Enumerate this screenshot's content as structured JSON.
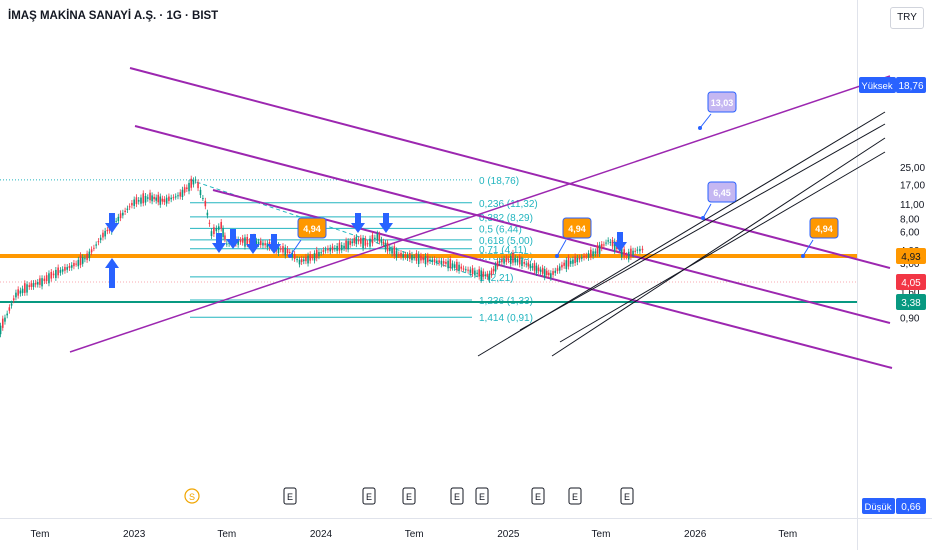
{
  "header": {
    "title": "İMAŞ MAKİNA SANAYİ A.Ş. · 1G · BIST",
    "currency": "TRY"
  },
  "colors": {
    "up": "#089981",
    "down": "#f23645",
    "fib": "#22b5bf",
    "channel": "#9c27b0",
    "support": "#ff9800",
    "green_line": "#089981",
    "arrow": "#2962ff",
    "callout_orange": "#ff9800",
    "callout_lilac": "#c5b7f2",
    "high_badge": "#2962ff"
  },
  "chart_data": {
    "type": "line",
    "description_of_series": "daily close (candlestick) approximated",
    "y_scale": "log",
    "y_ticks": [
      "25,00",
      "17,00",
      "11,00",
      "8,00",
      "6,00",
      "4,00",
      "3,00",
      "2,20",
      "1,60",
      "1,20",
      "0,90"
    ],
    "y_tick_values": [
      25,
      17,
      11,
      8,
      6,
      4,
      3,
      2.2,
      1.6,
      1.2,
      0.9
    ],
    "x_ticks": [
      "Tem",
      "2023",
      "Tem",
      "2024",
      "Tem",
      "2025",
      "Tem",
      "2026",
      "Tem"
    ],
    "x_tick_dates": [
      "2022-07-01",
      "2023-01-01",
      "2023-07-01",
      "2024-01-01",
      "2024-07-01",
      "2025-01-01",
      "2025-07-01",
      "2026-01-01",
      "2026-07-01"
    ],
    "x_range": [
      "2022-04-01",
      "2026-10-20"
    ],
    "price_points": [
      [
        "2022-04-15",
        0.7
      ],
      [
        "2022-05-15",
        1.5
      ],
      [
        "2022-06-10",
        1.8
      ],
      [
        "2022-07-05",
        2.0
      ],
      [
        "2022-08-01",
        2.4
      ],
      [
        "2022-09-01",
        2.8
      ],
      [
        "2022-10-01",
        3.4
      ],
      [
        "2022-11-01",
        5.5
      ],
      [
        "2022-12-01",
        8.0
      ],
      [
        "2023-01-01",
        11.5
      ],
      [
        "2023-02-01",
        12.8
      ],
      [
        "2023-03-01",
        11.8
      ],
      [
        "2023-04-01",
        13.5
      ],
      [
        "2023-05-01",
        18.76
      ],
      [
        "2023-05-20",
        11.0
      ],
      [
        "2023-06-01",
        5.8
      ],
      [
        "2023-06-20",
        6.8
      ],
      [
        "2023-07-01",
        4.6
      ],
      [
        "2023-08-01",
        4.9
      ],
      [
        "2023-09-01",
        4.7
      ],
      [
        "2023-10-01",
        4.3
      ],
      [
        "2023-11-01",
        3.8
      ],
      [
        "2023-11-20",
        3.1
      ],
      [
        "2023-12-15",
        3.4
      ],
      [
        "2024-01-10",
        4.0
      ],
      [
        "2024-02-15",
        4.3
      ],
      [
        "2024-03-10",
        5.0
      ],
      [
        "2024-04-01",
        4.6
      ],
      [
        "2024-04-20",
        5.4
      ],
      [
        "2024-05-10",
        4.2
      ],
      [
        "2024-06-01",
        3.6
      ],
      [
        "2024-07-01",
        3.4
      ],
      [
        "2024-08-01",
        3.2
      ],
      [
        "2024-09-01",
        3.0
      ],
      [
        "2024-10-01",
        2.7
      ],
      [
        "2024-11-01",
        2.4
      ],
      [
        "2024-11-25",
        2.25
      ],
      [
        "2024-12-15",
        3.1
      ],
      [
        "2025-01-10",
        3.3
      ],
      [
        "2025-02-01",
        3.0
      ],
      [
        "2025-03-01",
        2.6
      ],
      [
        "2025-03-25",
        2.3
      ],
      [
        "2025-04-20",
        2.9
      ],
      [
        "2025-05-20",
        3.3
      ],
      [
        "2025-06-20",
        3.8
      ],
      [
        "2025-07-15",
        4.9
      ],
      [
        "2025-08-01",
        4.3
      ],
      [
        "2025-08-20",
        3.5
      ],
      [
        "2025-09-10",
        4.0
      ],
      [
        "2025-09-25",
        4.05
      ]
    ],
    "fibonacci": [
      {
        "label": "0 (18,76)",
        "value": 18.76
      },
      {
        "label": "0,236 (11,32)",
        "value": 11.32
      },
      {
        "label": "0,382 (8,29)",
        "value": 8.29
      },
      {
        "label": "0,5 (6,44)",
        "value": 6.44
      },
      {
        "label": "0,618 (5,00)",
        "value": 5.0
      },
      {
        "label": "0,71 (4,11)",
        "value": 4.11
      },
      {
        "label": "0,786 (3,49)",
        "value": 3.49
      },
      {
        "label": "1 (2,21)",
        "value": 2.21
      },
      {
        "label": "1,236 (1,33)",
        "value": 1.33
      },
      {
        "label": "1,414 (0,91)",
        "value": 0.91
      }
    ],
    "callouts": [
      {
        "text": "4,94",
        "style": "orange"
      },
      {
        "text": "4,94",
        "style": "orange"
      },
      {
        "text": "4,94",
        "style": "orange"
      },
      {
        "text": "6,45",
        "style": "lilac"
      },
      {
        "text": "13,03",
        "style": "lilac"
      }
    ],
    "price_labels": [
      {
        "text": "Yüksek",
        "value": "18,76"
      },
      {
        "text": "4,93"
      },
      {
        "text": "4,05"
      },
      {
        "text": "3,38"
      },
      {
        "text": "Düşük",
        "value": "0,66"
      }
    ],
    "events": [
      "S",
      "E",
      "E",
      "E",
      "E",
      "E",
      "E",
      "E",
      "E"
    ]
  }
}
